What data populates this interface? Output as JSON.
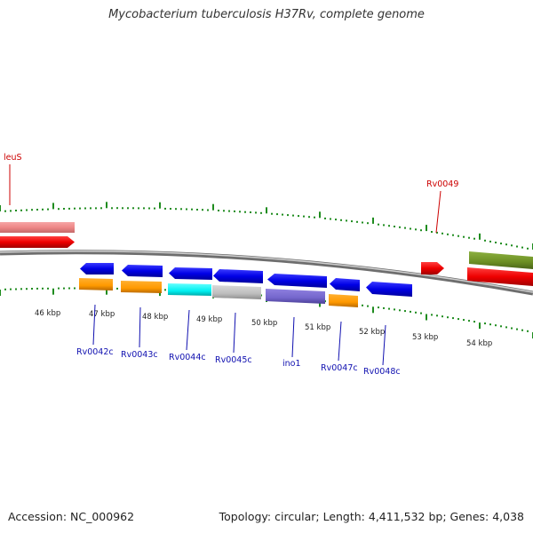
{
  "title": "Mycobacterium tuberculosis H37Rv, complete genome",
  "footer": {
    "accession": "Accession: NC_000962",
    "summary": "Topology: circular; Length: 4,411,532 bp; Genes: 4,038"
  },
  "colors": {
    "tick_green": "#1f8c1f",
    "backbone": "#8a8a8a",
    "label_blue": "#1010b0",
    "label_red": "#cc0000"
  },
  "scale_ticks": [
    "46 kbp",
    "47 kbp",
    "48 kbp",
    "49 kbp",
    "50 kbp",
    "51 kbp",
    "52 kbp",
    "53 kbp",
    "54 kbp"
  ],
  "gene_labels": [
    {
      "name": "leuS",
      "color": "#cc0000"
    },
    {
      "name": "Rv0049",
      "color": "#cc0000"
    },
    {
      "name": "Rv0042c",
      "color": "#1010b0"
    },
    {
      "name": "Rv0043c",
      "color": "#1010b0"
    },
    {
      "name": "Rv0044c",
      "color": "#1010b0"
    },
    {
      "name": "Rv0045c",
      "color": "#1010b0"
    },
    {
      "name": "ino1",
      "color": "#1010b0"
    },
    {
      "name": "Rv0047c",
      "color": "#1010b0"
    },
    {
      "name": "Rv0048c",
      "color": "#1010b0"
    }
  ]
}
